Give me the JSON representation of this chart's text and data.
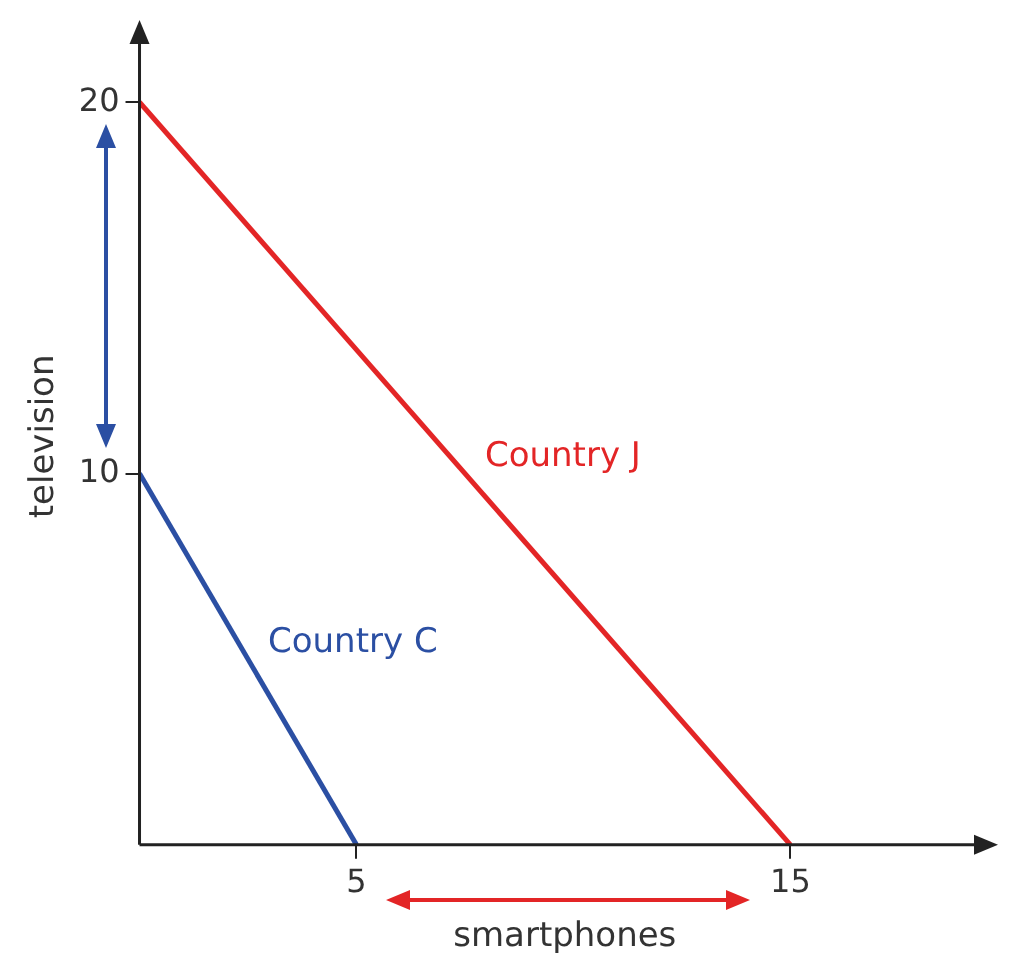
{
  "chart_data": {
    "type": "line",
    "xlabel": "smartphones",
    "ylabel": "television",
    "series": [
      {
        "name": "Country J",
        "color": "#e32526",
        "x": [
          0,
          15
        ],
        "values": [
          20,
          0
        ]
      },
      {
        "name": "Country C",
        "color": "#2b4fa3",
        "x": [
          0,
          5
        ],
        "values": [
          10,
          0
        ]
      }
    ],
    "xlim": [
      0,
      19.6
    ],
    "ylim": [
      0,
      22
    ],
    "xticks": [
      5,
      15
    ],
    "yticks": [
      10,
      20
    ],
    "grid": false,
    "legend": false,
    "marker": "none",
    "line_style": "solid"
  }
}
